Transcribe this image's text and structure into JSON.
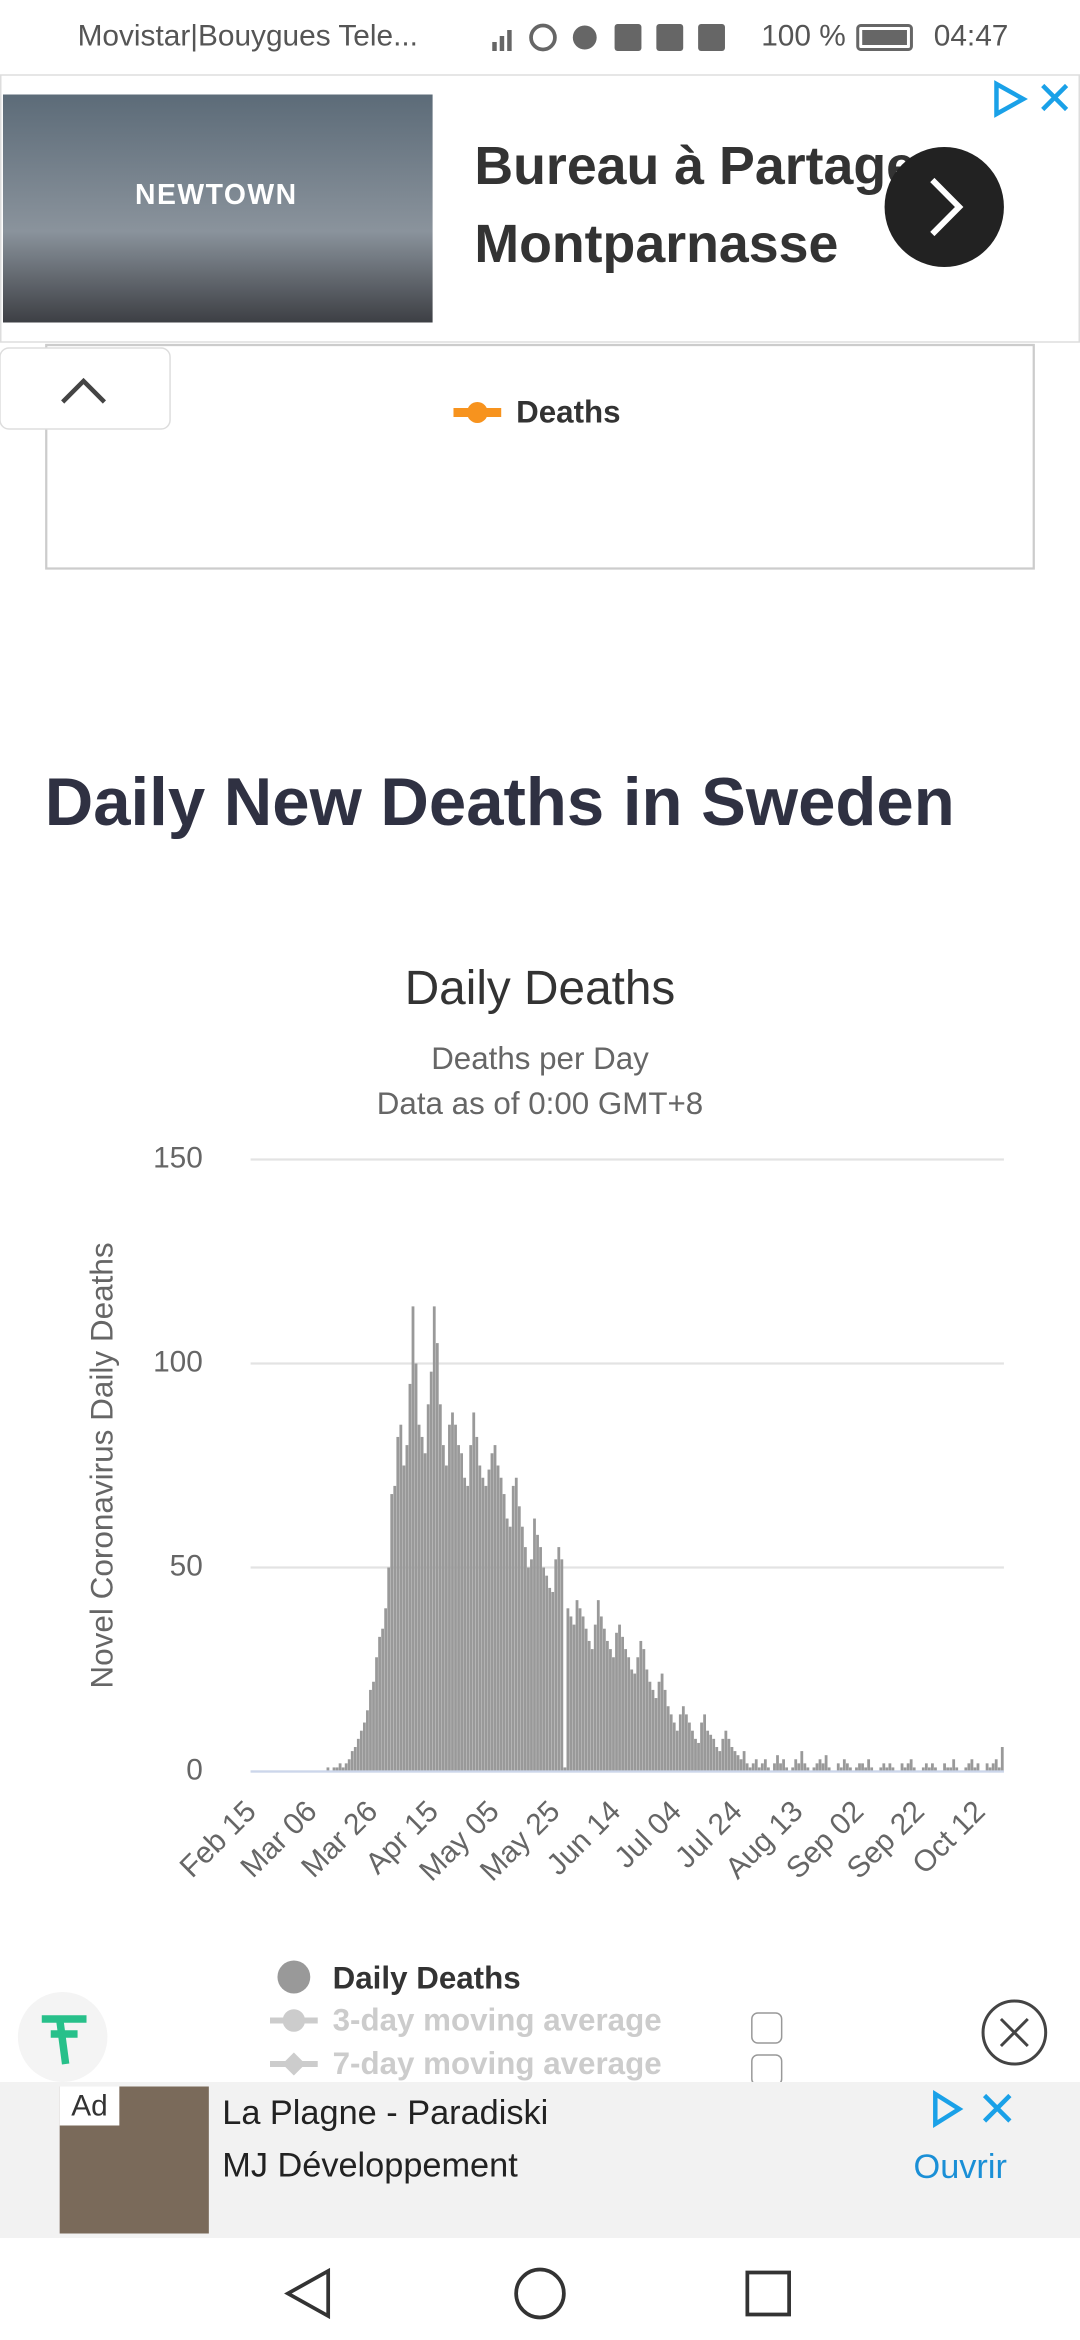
{
  "status_bar": {
    "carrier": "Movistar|Bouygues Tele...",
    "battery": "100 %",
    "time": "04:47"
  },
  "top_ad": {
    "brand": "NEWTOWN",
    "lines": [
      "Bureau à Partager",
      "Montparnasse"
    ]
  },
  "previous_chart": {
    "legend": "Deaths"
  },
  "heading": "Daily New Deaths in Sweden",
  "chart_data": {
    "type": "bar",
    "title": "Daily Deaths",
    "subtitle": [
      "Deaths per Day",
      "Data as of 0:00 GMT+8"
    ],
    "y_label": "Novel Coronavirus Daily Deaths",
    "ylim": [
      0,
      150
    ],
    "yticks": [
      0,
      50,
      100,
      150
    ],
    "grid": true,
    "categories": [
      "Feb 15",
      null,
      null,
      null,
      null,
      null,
      null,
      null,
      null,
      null,
      null,
      null,
      null,
      null,
      null,
      null,
      null,
      null,
      null,
      null,
      "Mar 06",
      null,
      null,
      null,
      null,
      null,
      null,
      null,
      null,
      null,
      null,
      null,
      null,
      null,
      null,
      null,
      null,
      null,
      null,
      null,
      "Mar 26",
      null,
      null,
      null,
      null,
      null,
      null,
      null,
      null,
      null,
      null,
      null,
      null,
      null,
      null,
      null,
      null,
      null,
      null,
      null,
      "Apr 15",
      null,
      null,
      null,
      null,
      null,
      null,
      null,
      null,
      null,
      null,
      null,
      null,
      null,
      null,
      null,
      null,
      null,
      null,
      null,
      "May 05",
      null,
      null,
      null,
      null,
      null,
      null,
      null,
      null,
      null,
      null,
      null,
      null,
      null,
      null,
      null,
      null,
      null,
      null,
      null,
      "May 25",
      null,
      null,
      null,
      null,
      null,
      null,
      null,
      null,
      null,
      null,
      null,
      null,
      null,
      null,
      null,
      null,
      null,
      null,
      null,
      "Jun 14",
      null,
      null,
      null,
      null,
      null,
      null,
      null,
      null,
      null,
      null,
      null,
      null,
      null,
      null,
      null,
      null,
      null,
      null,
      null,
      "Jul 04",
      null,
      null,
      null,
      null,
      null,
      null,
      null,
      null,
      null,
      null,
      null,
      null,
      null,
      null,
      null,
      null,
      null,
      null,
      null,
      "Jul 24",
      null,
      null,
      null,
      null,
      null,
      null,
      null,
      null,
      null,
      null,
      null,
      null,
      null,
      null,
      null,
      null,
      null,
      null,
      null,
      "Aug 13",
      null,
      null,
      null,
      null,
      null,
      null,
      null,
      null,
      null,
      null,
      null,
      null,
      null,
      null,
      null,
      null,
      null,
      null,
      null,
      "Sep 02",
      null,
      null,
      null,
      null,
      null,
      null,
      null,
      null,
      null,
      null,
      null,
      null,
      null,
      null,
      null,
      null,
      null,
      null,
      null,
      "Sep 22",
      null,
      null,
      null,
      null,
      null,
      null,
      null,
      null,
      null,
      null,
      null,
      null,
      null,
      null,
      null,
      null,
      null,
      null,
      null,
      "Oct 12",
      null,
      null,
      null,
      null,
      null,
      null,
      null
    ],
    "series": [
      {
        "name": "Daily Deaths",
        "color": "#999999",
        "values": [
          0,
          0,
          0,
          0,
          0,
          0,
          0,
          0,
          0,
          0,
          0,
          0,
          0,
          0,
          0,
          0,
          0,
          0,
          0,
          0,
          0,
          0,
          0,
          0,
          0,
          1,
          0,
          1,
          1,
          2,
          1,
          2,
          3,
          5,
          6,
          8,
          10,
          12,
          15,
          20,
          22,
          28,
          33,
          35,
          40,
          50,
          68,
          70,
          82,
          85,
          75,
          80,
          95,
          114,
          100,
          85,
          82,
          78,
          90,
          98,
          114,
          105,
          90,
          80,
          75,
          85,
          88,
          85,
          80,
          78,
          72,
          70,
          80,
          88,
          82,
          75,
          72,
          70,
          74,
          78,
          80,
          75,
          72,
          68,
          62,
          60,
          70,
          72,
          65,
          60,
          55,
          50,
          52,
          62,
          58,
          55,
          50,
          48,
          45,
          44,
          52,
          55,
          52,
          1,
          40,
          38,
          36,
          42,
          40,
          38,
          35,
          32,
          30,
          36,
          42,
          38,
          35,
          32,
          30,
          28,
          34,
          36,
          33,
          30,
          28,
          25,
          24,
          28,
          32,
          30,
          25,
          22,
          20,
          18,
          22,
          24,
          20,
          16,
          14,
          12,
          10,
          14,
          16,
          14,
          12,
          10,
          8,
          7,
          12,
          14,
          10,
          9,
          8,
          6,
          5,
          8,
          10,
          8,
          6,
          5,
          4,
          3,
          5,
          2,
          1,
          2,
          3,
          1,
          2,
          3,
          1,
          0,
          2,
          4,
          2,
          3,
          1,
          0,
          1,
          3,
          2,
          5,
          2,
          1,
          0,
          1,
          2,
          3,
          2,
          4,
          1,
          0,
          0,
          2,
          1,
          3,
          2,
          1,
          0,
          1,
          2,
          2,
          1,
          3,
          1,
          0,
          0,
          1,
          2,
          1,
          2,
          1,
          0,
          0,
          2,
          1,
          2,
          3,
          1,
          0,
          0,
          1,
          2,
          1,
          2,
          1,
          0,
          0,
          2,
          1,
          1,
          3,
          1,
          0,
          0,
          1,
          2,
          3,
          1,
          2,
          0,
          0,
          2,
          1,
          2,
          3,
          1,
          6
        ]
      }
    ],
    "inactive_series": [
      "3-day moving average",
      "7-day moving average"
    ]
  },
  "bottom_ad": {
    "badge": "Ad",
    "title": "La Plagne - Paradiski",
    "advertiser": "MJ Développement",
    "action": "Ouvrir"
  }
}
